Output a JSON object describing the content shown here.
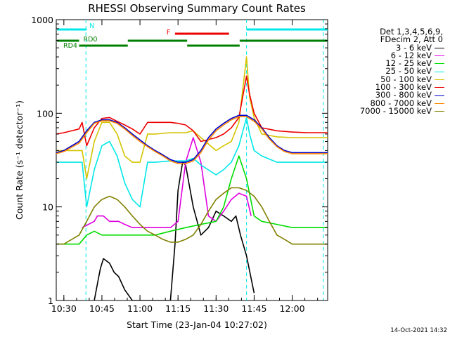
{
  "chart_data": {
    "type": "line",
    "title": "RHESSI Observing Summary Count Rates",
    "xlabel": "Start Time (23-Jan-04 10:27:02)",
    "ylabel": "Count Rate (s⁻¹ detector⁻¹)",
    "yscale": "log",
    "ylim": [
      1,
      1000
    ],
    "xlim_minutes": [
      10.45,
      12.233
    ],
    "x_ticks": [
      {
        "label": "10:30",
        "value": 10.5
      },
      {
        "label": "10:45",
        "value": 10.75
      },
      {
        "label": "11:00",
        "value": 11.0
      },
      {
        "label": "11:15",
        "value": 11.25
      },
      {
        "label": "11:30",
        "value": 11.5
      },
      {
        "label": "11:45",
        "value": 11.75
      },
      {
        "label": "12:00",
        "value": 12.0
      }
    ],
    "y_ticks": [
      {
        "label": "1",
        "value": 1
      },
      {
        "label": "10",
        "value": 10
      },
      {
        "label": "100",
        "value": 100
      },
      {
        "label": "1000",
        "value": 1000
      }
    ],
    "legend_header": [
      "Det 1,3,4,5,6,9,",
      "FDecim 2, Att 0"
    ],
    "legend_placement": "right",
    "series": [
      {
        "name": "3 - 6 keV",
        "color": "#000000",
        "x": [
          10.7,
          10.72,
          10.74,
          10.76,
          10.8,
          10.83,
          10.86,
          10.9,
          10.95,
          11.0,
          11.05,
          11.1,
          11.15,
          11.2,
          11.23,
          11.25,
          11.28,
          11.3,
          11.35,
          11.4,
          11.45,
          11.5,
          11.55,
          11.6,
          11.63,
          11.66,
          11.7,
          11.75
        ],
        "y": [
          1.0,
          1.5,
          2.2,
          2.8,
          2.5,
          2.0,
          1.8,
          1.3,
          1.0,
          1.0,
          1.0,
          1.0,
          1.0,
          1.0,
          4,
          15,
          30,
          28,
          10,
          5,
          6,
          9,
          8,
          7,
          8,
          5,
          3,
          1.2
        ]
      },
      {
        "name": "6 - 12 keV",
        "color": "#e000e0",
        "x": [
          10.62,
          10.7,
          10.72,
          10.76,
          10.8,
          10.86,
          10.9,
          10.95,
          11.0,
          11.05,
          11.1,
          11.15,
          11.2,
          11.25,
          11.3,
          11.35,
          11.4,
          11.45,
          11.5,
          11.55,
          11.6,
          11.65,
          11.7,
          11.73
        ],
        "y": [
          6,
          7,
          8,
          8,
          7,
          7,
          6.5,
          6,
          6,
          6,
          6,
          6,
          6,
          7,
          30,
          55,
          30,
          8,
          7,
          9,
          12,
          14,
          13,
          8
        ]
      },
      {
        "name": "12 - 25 keV",
        "color": "#00dd00",
        "x": [
          10.45,
          10.55,
          10.6,
          10.65,
          10.7,
          10.75,
          10.8,
          10.9,
          11.0,
          11.1,
          11.2,
          11.3,
          11.4,
          11.5,
          11.55,
          11.6,
          11.65,
          11.7,
          11.75,
          11.8,
          11.9,
          12.0,
          12.1,
          12.2,
          12.233
        ],
        "y": [
          4,
          4,
          4,
          5,
          5.5,
          5,
          5,
          5,
          5,
          5,
          5.5,
          6,
          6.5,
          7,
          10,
          20,
          35,
          20,
          8,
          7,
          6.5,
          6,
          6,
          6,
          6
        ]
      },
      {
        "name": "25 - 50 keV",
        "color": "#00e8e8",
        "x": [
          10.45,
          10.5,
          10.55,
          10.6,
          10.62,
          10.65,
          10.7,
          10.75,
          10.8,
          10.85,
          10.9,
          10.95,
          11.0,
          11.05,
          11.1,
          11.2,
          11.3,
          11.35,
          11.4,
          11.5,
          11.55,
          11.6,
          11.65,
          11.7,
          11.72,
          11.75,
          11.8,
          11.9,
          12.0,
          12.1,
          12.2,
          12.233
        ],
        "y": [
          30,
          30,
          30,
          30,
          30,
          10,
          25,
          45,
          50,
          35,
          18,
          12,
          10,
          30,
          30,
          31,
          31,
          33,
          28,
          22,
          25,
          30,
          45,
          90,
          60,
          40,
          35,
          30,
          30,
          30,
          30,
          30
        ]
      },
      {
        "name": "50 - 100 keV",
        "color": "#d4c400",
        "x": [
          10.45,
          10.5,
          10.6,
          10.62,
          10.65,
          10.7,
          10.75,
          10.8,
          10.85,
          10.9,
          10.95,
          11.0,
          11.05,
          11.1,
          11.2,
          11.3,
          11.35,
          11.4,
          11.5,
          11.55,
          11.6,
          11.65,
          11.7,
          11.72,
          11.75,
          11.8,
          11.9,
          12.0,
          12.1,
          12.2,
          12.233
        ],
        "y": [
          40,
          40,
          40,
          40,
          20,
          50,
          80,
          80,
          60,
          35,
          30,
          30,
          60,
          60,
          62,
          62,
          65,
          55,
          40,
          45,
          50,
          80,
          400,
          150,
          90,
          60,
          56,
          55,
          55,
          55,
          55
        ]
      },
      {
        "name": "100 - 300 keV",
        "color": "#ee0000",
        "x": [
          10.45,
          10.5,
          10.6,
          10.62,
          10.65,
          10.7,
          10.75,
          10.8,
          10.85,
          10.9,
          10.95,
          11.0,
          11.05,
          11.1,
          11.2,
          11.25,
          11.3,
          11.35,
          11.4,
          11.5,
          11.55,
          11.6,
          11.65,
          11.7,
          11.72,
          11.75,
          11.8,
          11.9,
          12.0,
          12.1,
          12.2,
          12.233
        ],
        "y": [
          60,
          62,
          68,
          80,
          45,
          70,
          88,
          90,
          82,
          75,
          68,
          60,
          80,
          80,
          80,
          78,
          75,
          65,
          50,
          55,
          60,
          70,
          90,
          250,
          160,
          100,
          70,
          65,
          63,
          62,
          62,
          62
        ]
      },
      {
        "name": "300 - 800 keV",
        "color": "#0000cc",
        "x": [
          10.45,
          10.5,
          10.6,
          10.65,
          10.7,
          10.75,
          10.8,
          10.85,
          10.9,
          10.95,
          11.0,
          11.05,
          11.1,
          11.15,
          11.2,
          11.25,
          11.3,
          11.35,
          11.4,
          11.45,
          11.5,
          11.55,
          11.6,
          11.65,
          11.7,
          11.75,
          11.8,
          11.85,
          11.9,
          11.95,
          12.0,
          12.1,
          12.2,
          12.233
        ],
        "y": [
          38,
          40,
          50,
          65,
          80,
          85,
          85,
          80,
          70,
          60,
          52,
          45,
          40,
          36,
          32,
          30,
          30,
          32,
          40,
          55,
          68,
          78,
          88,
          95,
          95,
          85,
          70,
          55,
          45,
          40,
          38,
          38,
          38,
          38
        ]
      },
      {
        "name": "800 - 7000 keV",
        "color": "#ff8800",
        "x": [
          10.45,
          10.5,
          10.6,
          10.65,
          10.7,
          10.75,
          10.8,
          10.85,
          10.9,
          10.95,
          11.0,
          11.05,
          11.1,
          11.15,
          11.2,
          11.25,
          11.3,
          11.35,
          11.4,
          11.45,
          11.5,
          11.55,
          11.6,
          11.65,
          11.7,
          11.75,
          11.8,
          11.85,
          11.9,
          11.95,
          12.0,
          12.1,
          12.2,
          12.233
        ],
        "y": [
          37,
          39,
          48,
          62,
          78,
          83,
          83,
          78,
          68,
          58,
          50,
          44,
          39,
          35,
          31,
          29,
          29,
          31,
          38,
          52,
          65,
          75,
          85,
          92,
          92,
          82,
          68,
          53,
          44,
          39,
          37,
          37,
          37,
          37
        ]
      },
      {
        "name": "7000 - 15000 keV",
        "color": "#808000",
        "x": [
          10.45,
          10.5,
          10.6,
          10.65,
          10.7,
          10.75,
          10.8,
          10.85,
          10.9,
          10.95,
          11.0,
          11.05,
          11.1,
          11.15,
          11.2,
          11.25,
          11.3,
          11.35,
          11.4,
          11.45,
          11.5,
          11.55,
          11.6,
          11.65,
          11.7,
          11.75,
          11.8,
          11.85,
          11.9,
          11.95,
          12.0,
          12.1,
          12.2,
          12.233
        ],
        "y": [
          4,
          4,
          5,
          7,
          10,
          12,
          13,
          12,
          10,
          8,
          6.5,
          5.5,
          5,
          4.5,
          4.2,
          4.2,
          4.5,
          5,
          6.5,
          9,
          12,
          14,
          16,
          16,
          15,
          13,
          10,
          7,
          5,
          4.5,
          4,
          4,
          4,
          4
        ]
      }
    ],
    "status_bars": [
      {
        "label": "N",
        "color": "#00e8e8",
        "segments": [
          [
            10.455,
            10.65
          ],
          [
            11.7,
            12.233
          ]
        ],
        "level": 1
      },
      {
        "label": "F",
        "color": "#ee0000",
        "segments": [
          [
            11.23,
            11.585
          ]
        ],
        "level": 2
      },
      {
        "label": "RD0",
        "color": "#008000",
        "segments": [
          [
            10.455,
            10.6
          ],
          [
            10.92,
            11.31
          ],
          [
            11.655,
            12.233
          ]
        ],
        "level": 3
      },
      {
        "label": "RD4",
        "color": "#008000",
        "segments": [
          [
            10.6,
            10.92
          ],
          [
            11.31,
            11.655
          ]
        ],
        "level": 4
      }
    ],
    "vertical_markers": [
      {
        "x": 10.645,
        "color": "#00e8e8",
        "style": "dashed"
      },
      {
        "x": 11.7,
        "color": "#00e8e8",
        "style": "dashed"
      },
      {
        "x": 12.205,
        "color": "#00e8e8",
        "style": "dashed"
      }
    ]
  },
  "footer": {
    "date": "14-Oct-2021 14:32"
  }
}
